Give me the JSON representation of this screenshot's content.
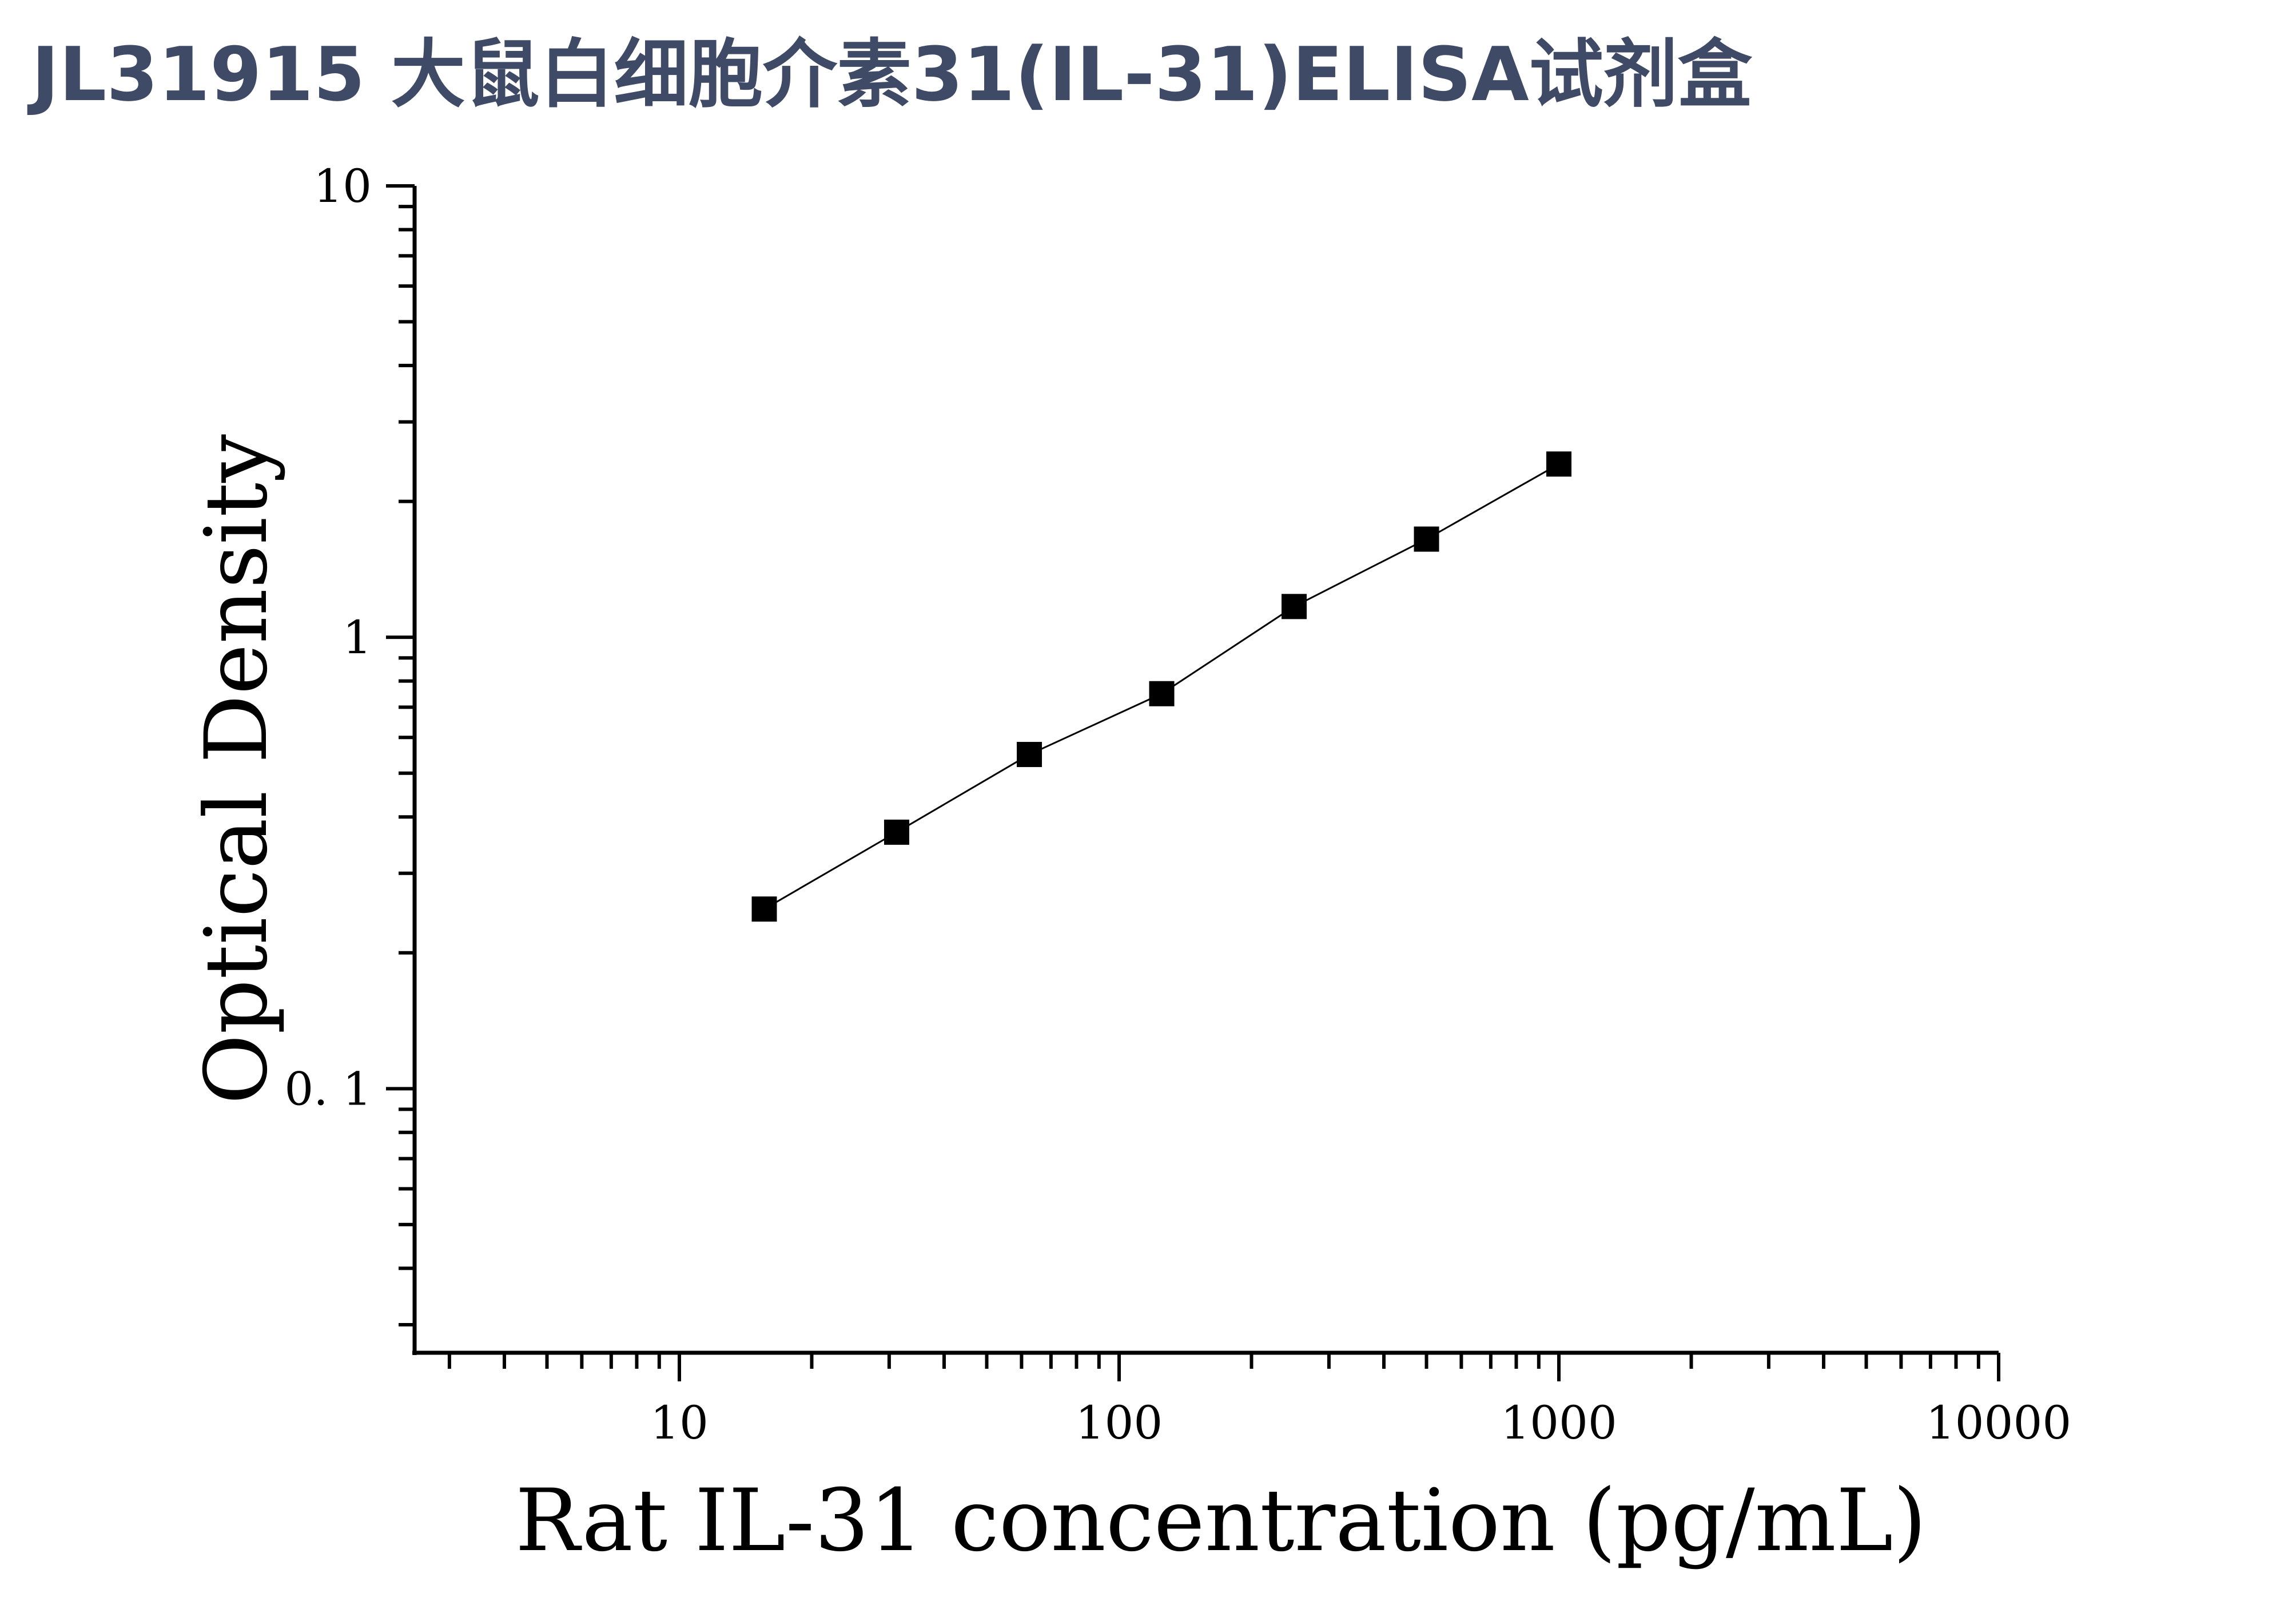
{
  "title": "JL31915 大鼠白细胞介素31(IL-31)ELISA试剂盒",
  "chart_data": {
    "type": "scatter",
    "xlabel": "Rat IL-31 concentration (pg/mL)",
    "ylabel": "Optical Density",
    "x_scale": "log",
    "y_scale": "log",
    "xlim": [
      2.5,
      10000
    ],
    "ylim": [
      0.026,
      10
    ],
    "x_ticks": [
      {
        "value": 10,
        "label": "10"
      },
      {
        "value": 100,
        "label": "100"
      },
      {
        "value": 1000,
        "label": "1000"
      },
      {
        "value": 10000,
        "label": "10000"
      }
    ],
    "y_ticks": [
      {
        "value": 0.1,
        "label": "0. 1"
      },
      {
        "value": 1,
        "label": "1"
      },
      {
        "value": 10,
        "label": "10"
      }
    ],
    "grid": false,
    "series": [
      {
        "x": [
          15.6,
          31.2,
          62.5,
          125,
          250,
          500,
          1000
        ],
        "y": [
          0.25,
          0.37,
          0.55,
          0.75,
          1.17,
          1.65,
          2.42
        ],
        "marker": "square",
        "fit_line": true,
        "color": "#000000"
      }
    ]
  }
}
